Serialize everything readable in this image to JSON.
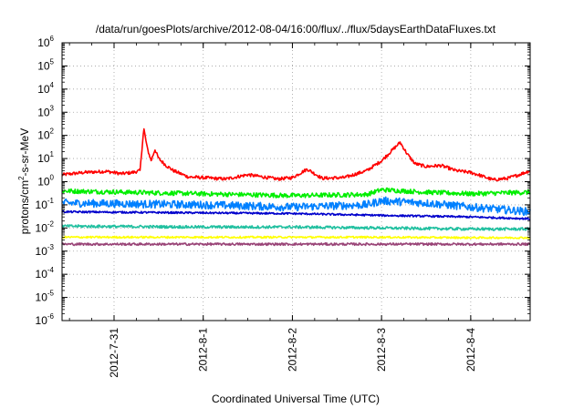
{
  "chart_data": {
    "type": "line",
    "title": "/data/run/goesPlots/archive/2012-08-04/16:00/flux/../flux/5daysEarthDataFluxes.txt",
    "xlabel": "Coordinated Universal Time (UTC)",
    "ylabel": {
      "pre": "protons/cm",
      "sup": "2",
      "post": "-s-sr-MeV"
    },
    "x_unit": "days",
    "xlim": [
      "2012-07-30 10:00",
      "2012-08-04 16:00"
    ],
    "x_ticks": [
      {
        "value": "2012-07-31 00:00",
        "label": "2012-7-31"
      },
      {
        "value": "2012-08-01 00:00",
        "label": "2012-8-1"
      },
      {
        "value": "2012-08-02 00:00",
        "label": "2012-8-2"
      },
      {
        "value": "2012-08-03 00:00",
        "label": "2012-8-3"
      },
      {
        "value": "2012-08-04 00:00",
        "label": "2012-8-4"
      }
    ],
    "y_scale": "log",
    "ylim": [
      1e-06,
      1000000.0
    ],
    "y_ticks": [
      {
        "base": "10",
        "exp": "-6"
      },
      {
        "base": "10",
        "exp": "-5"
      },
      {
        "base": "10",
        "exp": "-4"
      },
      {
        "base": "10",
        "exp": "-3"
      },
      {
        "base": "10",
        "exp": "-2"
      },
      {
        "base": "10",
        "exp": "-1"
      },
      {
        "base": "10",
        "exp": "0"
      },
      {
        "base": "10",
        "exp": "1"
      },
      {
        "base": "10",
        "exp": "2"
      },
      {
        "base": "10",
        "exp": "3"
      },
      {
        "base": "10",
        "exp": "4"
      },
      {
        "base": "10",
        "exp": "5"
      },
      {
        "base": "10",
        "exp": "6"
      }
    ],
    "grid": true,
    "legend": "none",
    "series": [
      {
        "color": "#ff0000",
        "noise": 0.07,
        "x": [
          "2012-07-30 10:00",
          "2012-07-30 16:00",
          "2012-07-30 22:00",
          "2012-07-31 02:00",
          "2012-07-31 05:00",
          "2012-07-31 07:00",
          "2012-07-31 08:00",
          "2012-07-31 09:00",
          "2012-07-31 10:00",
          "2012-07-31 11:00",
          "2012-07-31 12:00",
          "2012-07-31 14:00",
          "2012-07-31 16:00",
          "2012-07-31 20:00",
          "2012-08-01 00:00",
          "2012-08-01 06:00",
          "2012-08-01 12:00",
          "2012-08-01 20:00",
          "2012-08-02 00:00",
          "2012-08-02 04:00",
          "2012-08-02 08:00",
          "2012-08-02 14:00",
          "2012-08-02 20:00",
          "2012-08-03 00:00",
          "2012-08-03 05:00",
          "2012-08-03 07:00",
          "2012-08-03 09:00",
          "2012-08-03 12:00",
          "2012-08-03 16:00",
          "2012-08-03 20:00",
          "2012-08-04 00:00",
          "2012-08-04 02:00",
          "2012-08-04 06:00",
          "2012-08-04 10:00",
          "2012-08-04 13:00",
          "2012-08-04 16:00"
        ],
        "y": [
          2.0,
          2.5,
          2.8,
          2.2,
          2.5,
          3.0,
          200,
          25,
          8,
          25,
          10,
          5,
          3,
          1.6,
          1.5,
          1.3,
          2.0,
          1.3,
          1.5,
          3.5,
          1.4,
          1.5,
          3.0,
          8,
          50,
          15,
          6,
          4.5,
          5,
          3,
          2.5,
          2,
          1.2,
          1.4,
          2.0,
          3.0
        ]
      },
      {
        "color": "#00ee00",
        "noise": 0.1,
        "x": [
          "2012-07-30 10:00",
          "2012-08-01 00:00",
          "2012-08-02 00:00",
          "2012-08-02 20:00",
          "2012-08-03 00:00",
          "2012-08-03 12:00",
          "2012-08-04 00:00",
          "2012-08-04 16:00"
        ],
        "y": [
          0.4,
          0.3,
          0.25,
          0.28,
          0.45,
          0.35,
          0.3,
          0.35
        ]
      },
      {
        "color": "#0080ff",
        "noise": 0.17,
        "x": [
          "2012-07-30 10:00",
          "2012-08-01 00:00",
          "2012-08-02 00:00",
          "2012-08-02 20:00",
          "2012-08-03 00:00",
          "2012-08-03 12:00",
          "2012-08-04 00:00",
          "2012-08-04 16:00"
        ],
        "y": [
          0.12,
          0.1,
          0.08,
          0.1,
          0.15,
          0.12,
          0.08,
          0.05
        ]
      },
      {
        "color": "#0000cc",
        "noise": 0.04,
        "x": [
          "2012-07-30 10:00",
          "2012-08-01 00:00",
          "2012-08-02 00:00",
          "2012-08-03 00:00",
          "2012-08-04 00:00",
          "2012-08-04 16:00"
        ],
        "y": [
          0.05,
          0.045,
          0.042,
          0.035,
          0.03,
          0.025
        ]
      },
      {
        "color": "#20c0a0",
        "noise": 0.06,
        "x": [
          "2012-07-30 10:00",
          "2012-08-01 00:00",
          "2012-08-02 00:00",
          "2012-08-03 00:00",
          "2012-08-04 00:00",
          "2012-08-04 16:00"
        ],
        "y": [
          0.012,
          0.011,
          0.011,
          0.01,
          0.009,
          0.009
        ]
      },
      {
        "color": "#ffff00",
        "noise": 0.04,
        "x": [
          "2012-07-30 10:00",
          "2012-08-01 00:00",
          "2012-08-02 00:00",
          "2012-08-03 00:00",
          "2012-08-04 00:00",
          "2012-08-04 16:00"
        ],
        "y": [
          0.004,
          0.004,
          0.004,
          0.004,
          0.0038,
          0.0038
        ]
      },
      {
        "color": "#994477",
        "noise": 0.05,
        "x": [
          "2012-07-30 10:00",
          "2012-08-01 00:00",
          "2012-08-02 00:00",
          "2012-08-03 00:00",
          "2012-08-04 00:00",
          "2012-08-04 16:00"
        ],
        "y": [
          0.002,
          0.002,
          0.002,
          0.002,
          0.002,
          0.002
        ]
      }
    ]
  }
}
